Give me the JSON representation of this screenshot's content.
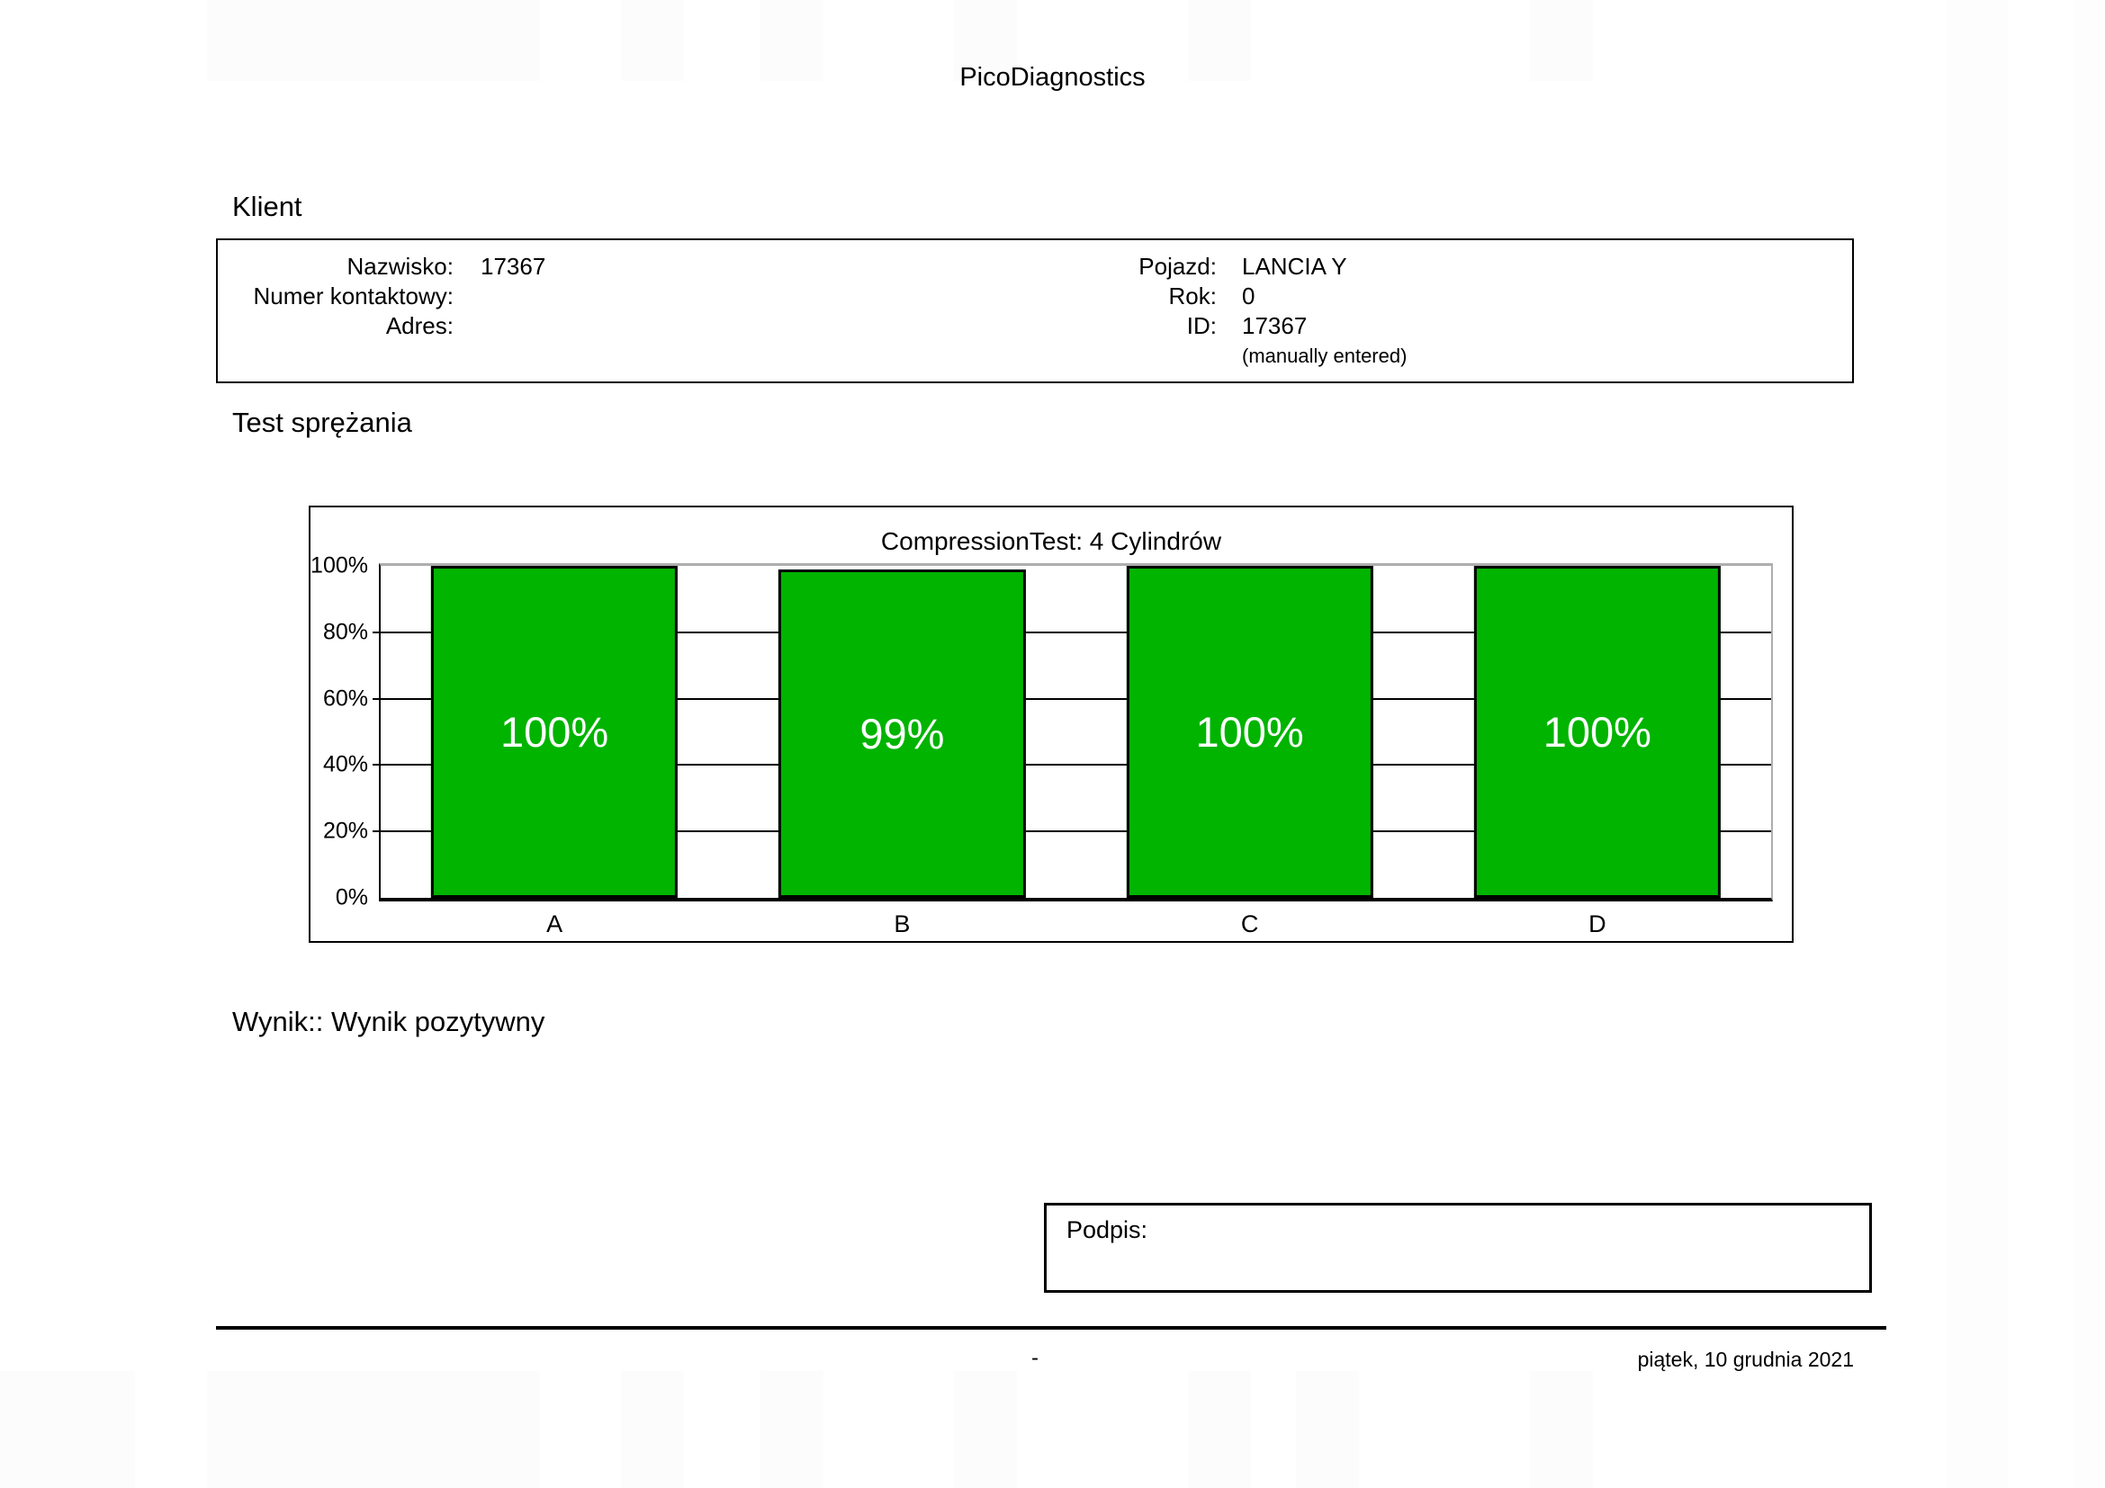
{
  "header": {
    "app_title": "PicoDiagnostics"
  },
  "client": {
    "heading": "Klient",
    "left_fields": [
      {
        "label": "Nazwisko:",
        "value": "17367"
      },
      {
        "label": "Numer kontaktowy:",
        "value": ""
      },
      {
        "label": "Adres:",
        "value": ""
      }
    ],
    "right_fields": [
      {
        "label": "Pojazd:",
        "value": "LANCIA Y"
      },
      {
        "label": "Rok:",
        "value": "0"
      },
      {
        "label": "ID:",
        "value": "17367"
      },
      {
        "label": "",
        "value": "(manually entered)",
        "note": true
      }
    ]
  },
  "compression_test": {
    "heading": "Test sprężania",
    "result_text": "Wynik:: Wynik pozytywny"
  },
  "chart_data": {
    "type": "bar",
    "title": "CompressionTest: 4 Cylindrów",
    "categories": [
      "A",
      "B",
      "C",
      "D"
    ],
    "values": [
      100,
      99,
      100,
      100
    ],
    "value_labels": [
      "100%",
      "99%",
      "100%",
      "100%"
    ],
    "ylim": [
      0,
      100
    ],
    "yticks": [
      "0%",
      "20%",
      "40%",
      "60%",
      "80%",
      "100%"
    ],
    "grid": true,
    "legend_position": "none",
    "bar_color": "#00b400"
  },
  "signature": {
    "label": "Podpis:"
  },
  "footer": {
    "center_text": "-",
    "date_text": "piątek, 10 grudnia 2021"
  }
}
